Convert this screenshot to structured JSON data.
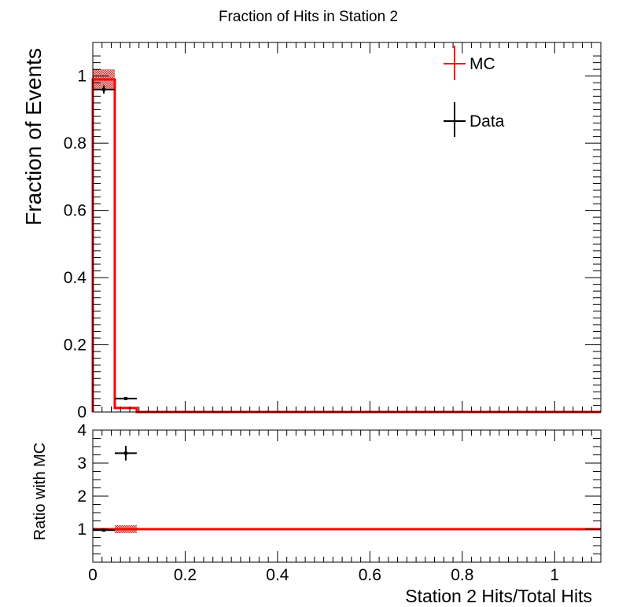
{
  "chart_data": [
    {
      "type": "line",
      "title": "Fraction of Hits in Station 2",
      "xlabel": "",
      "ylabel": "Fraction of Events",
      "xlim": [
        0,
        1.1
      ],
      "ylim": [
        0,
        1.1
      ],
      "x_ticks": [],
      "y_ticks": [
        "0",
        "0.2",
        "0.4",
        "0.6",
        "0.8",
        "1"
      ],
      "legend": {
        "placement": "top-right",
        "entries": [
          "MC",
          "Data"
        ]
      },
      "colors": {
        "MC": "#ff0000",
        "Data": "#000000",
        "band": "#d03030"
      },
      "series": [
        {
          "name": "MC",
          "style": "step",
          "bin_edges": [
            0,
            0.0476,
            0.0952,
            1.1
          ],
          "values": [
            0.99,
            0.012,
            0.0
          ],
          "uncertainty_band": [
            0.03,
            0.0,
            0.0
          ]
        },
        {
          "name": "Data",
          "style": "points",
          "points": [
            {
              "x": 0.0238,
              "y": 0.96,
              "xerr": 0.0238,
              "yerr": 0.012
            },
            {
              "x": 0.0714,
              "y": 0.04,
              "xerr": 0.0238,
              "yerr": 0.002
            }
          ]
        }
      ]
    },
    {
      "type": "line",
      "title": "",
      "xlabel": "Station 2 Hits/Total Hits",
      "ylabel": "Ratio with MC",
      "xlim": [
        0,
        1.1
      ],
      "ylim": [
        0,
        4
      ],
      "x_ticks": [
        "0",
        "0.2",
        "0.4",
        "0.6",
        "0.8",
        "1"
      ],
      "y_ticks": [
        "1",
        "2",
        "3",
        "4"
      ],
      "series": [
        {
          "name": "MC",
          "style": "line",
          "x": [
            0,
            1.1
          ],
          "y": [
            1,
            1
          ],
          "uncertainty_band": {
            "x": [
              0.0476,
              0.0952
            ],
            "y": [
              0.88,
              1.12
            ]
          }
        },
        {
          "name": "Data",
          "style": "points",
          "points": [
            {
              "x": 0.0238,
              "y": 0.97,
              "xerr": 0.0238,
              "yerr": 0.0
            },
            {
              "x": 0.0714,
              "y": 3.3,
              "xerr": 0.0238,
              "yerr": 0.22
            }
          ]
        }
      ]
    }
  ]
}
